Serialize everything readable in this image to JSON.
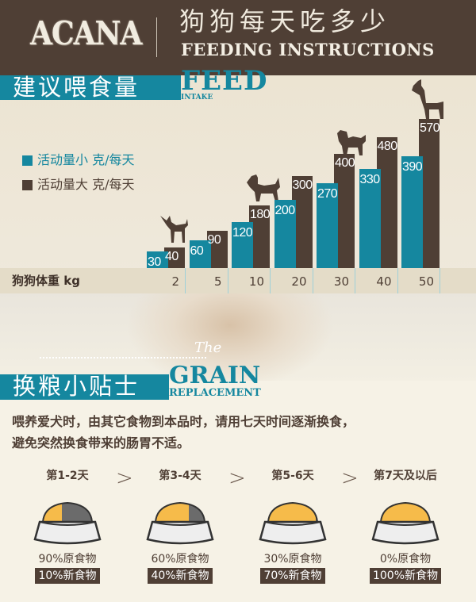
{
  "header": {
    "logo": "ACANA",
    "title_cn": "狗狗每天吃多少",
    "title_en": "FEEDING INSTRUCTIONS"
  },
  "feed_section": {
    "title_cn": "建议喂食量",
    "title_en": "FEED",
    "subtitle_en": "INTAKE"
  },
  "chart_data": {
    "type": "bar",
    "xlabel": "狗狗体重 kg",
    "categories": [
      "2",
      "5",
      "10",
      "20",
      "30",
      "40",
      "50"
    ],
    "series": [
      {
        "name": "活动量小 克/每天",
        "color": "#15879f",
        "values": [
          30,
          60,
          120,
          200,
          270,
          330,
          390
        ]
      },
      {
        "name": "活动量大 克/每天",
        "color": "#4f3f35",
        "values": [
          40,
          90,
          180,
          300,
          400,
          480,
          570
        ]
      }
    ],
    "legend": "left",
    "grid": false
  },
  "grain_section": {
    "title_cn": "换粮小贴士",
    "title_en": "GRAIN",
    "subtitle_en": "REPLACEMENT",
    "photo_script": "The",
    "tips": [
      "喂养爱犬时，由其它食物到本品时，请用七天时间逐渐换食，",
      "避免突然换食带来的肠胃不适。"
    ]
  },
  "steps": [
    {
      "label": "第1-2天",
      "old": "90%原食物",
      "new": "10%新食物",
      "new_fraction": 0.1
    },
    {
      "label": "第3-4天",
      "old": "60%原食物",
      "new": "40%新食物",
      "new_fraction": 0.4
    },
    {
      "label": "第5-6天",
      "old": "30%原食物",
      "new": "70%新食物",
      "new_fraction": 0.7
    },
    {
      "label": "第7天及以后",
      "old": "0%原食物",
      "new": "100%新食物",
      "new_fraction": 1.0
    }
  ],
  "step_arrow": ">",
  "colors": {
    "brown": "#4f3f35",
    "teal": "#15879f",
    "new_food": "#f6bb4a",
    "old_food": "#6b6b6b"
  }
}
